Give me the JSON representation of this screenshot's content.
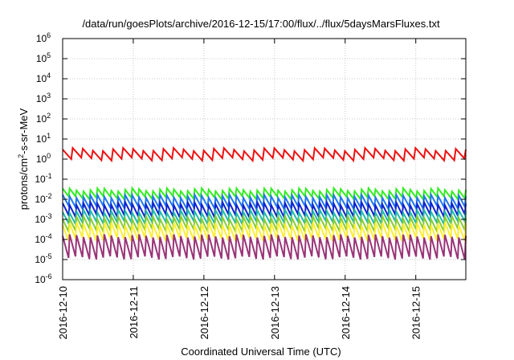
{
  "chart_data": {
    "type": "line",
    "title": "/data/run/goesPlots/archive/2016-12-15/17:00/flux/../flux/5daysMarsFluxes.txt",
    "xlabel": "Coordinated Universal Time (UTC)",
    "ylabel": {
      "main": "protons/cm",
      "sup": "2",
      "rest": "-s-sr-MeV"
    },
    "y_scale": "log",
    "ylim_exponents": [
      -6,
      6
    ],
    "y_tick_labels": [
      {
        "base": "10",
        "exp": "-6"
      },
      {
        "base": "10",
        "exp": "-5"
      },
      {
        "base": "10",
        "exp": "-4"
      },
      {
        "base": "10",
        "exp": "-3"
      },
      {
        "base": "10",
        "exp": "-2"
      },
      {
        "base": "10",
        "exp": "-1"
      },
      {
        "base": "10",
        "exp": "0"
      },
      {
        "base": "10",
        "exp": "1"
      },
      {
        "base": "10",
        "exp": "2"
      },
      {
        "base": "10",
        "exp": "3"
      },
      {
        "base": "10",
        "exp": "4"
      },
      {
        "base": "10",
        "exp": "5"
      },
      {
        "base": "10",
        "exp": "6"
      }
    ],
    "x_start": "2016-12-10",
    "x_end": "2016-12-15 17:00",
    "x_ticks": [
      "2016-12-10",
      "2016-12-11",
      "2016-12-12",
      "2016-12-13",
      "2016-12-14",
      "2016-12-15"
    ],
    "grid": true,
    "legend": "none",
    "series": [
      {
        "color": "#ee1111",
        "pattern": "sawtooth",
        "low": 1.0,
        "high": 3.0,
        "teeth": 40
      },
      {
        "color": "#33ee22",
        "pattern": "sawtooth",
        "low": 0.012,
        "high": 0.03,
        "teeth": 58
      },
      {
        "color": "#2277ee",
        "pattern": "sawtooth",
        "low": 0.004,
        "high": 0.014,
        "teeth": 58
      },
      {
        "color": "#1122cc",
        "pattern": "sawtooth",
        "low": 0.0015,
        "high": 0.006,
        "teeth": 58
      },
      {
        "color": "#22bbaa",
        "pattern": "sawtooth",
        "low": 0.0007,
        "high": 0.0025,
        "teeth": 58
      },
      {
        "color": "#88cc33",
        "pattern": "sawtooth",
        "low": 0.0003,
        "high": 0.0012,
        "teeth": 58
      },
      {
        "color": "#ffee33",
        "pattern": "sawtooth",
        "low": 0.0001,
        "high": 0.0006,
        "teeth": 58
      },
      {
        "color": "#993377",
        "pattern": "sawtooth",
        "low": 1.2e-05,
        "high": 0.00015,
        "teeth": 58
      }
    ]
  }
}
